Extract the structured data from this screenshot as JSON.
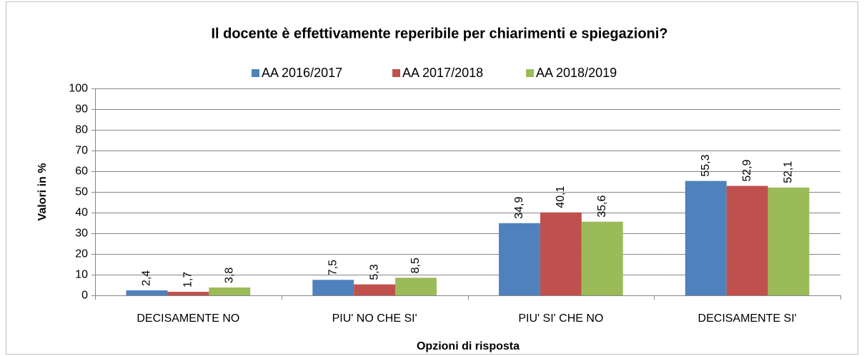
{
  "chart_data": {
    "type": "bar",
    "title": "Il docente è effettivamente reperibile per chiarimenti e spiegazioni?",
    "xlabel": "Opzioni di risposta",
    "ylabel": "Valori in %",
    "categories": [
      "DECISAMENTE NO",
      "PIU' NO CHE SI'",
      "PIU' SI' CHE NO",
      "DECISAMENTE SI'"
    ],
    "series": [
      {
        "name": "AA 2016/2017",
        "color": "#4f81bd",
        "values": [
          2.4,
          7.5,
          34.9,
          55.3
        ],
        "value_labels": [
          "2,4",
          "7,5",
          "34,9",
          "55,3"
        ]
      },
      {
        "name": "AA 2017/2018",
        "color": "#c0504d",
        "values": [
          1.7,
          5.3,
          40.1,
          52.9
        ],
        "value_labels": [
          "1,7",
          "5,3",
          "40,1",
          "52,9"
        ]
      },
      {
        "name": "AA 2018/2019",
        "color": "#9bbb59",
        "values": [
          3.8,
          8.5,
          35.6,
          52.1
        ],
        "value_labels": [
          "3,8",
          "8,5",
          "35,6",
          "52,1"
        ]
      }
    ],
    "ylim": [
      0,
      100
    ],
    "yticks": [
      0,
      10,
      20,
      30,
      40,
      50,
      60,
      70,
      80,
      90,
      100
    ],
    "grid": true,
    "legend": "top"
  }
}
